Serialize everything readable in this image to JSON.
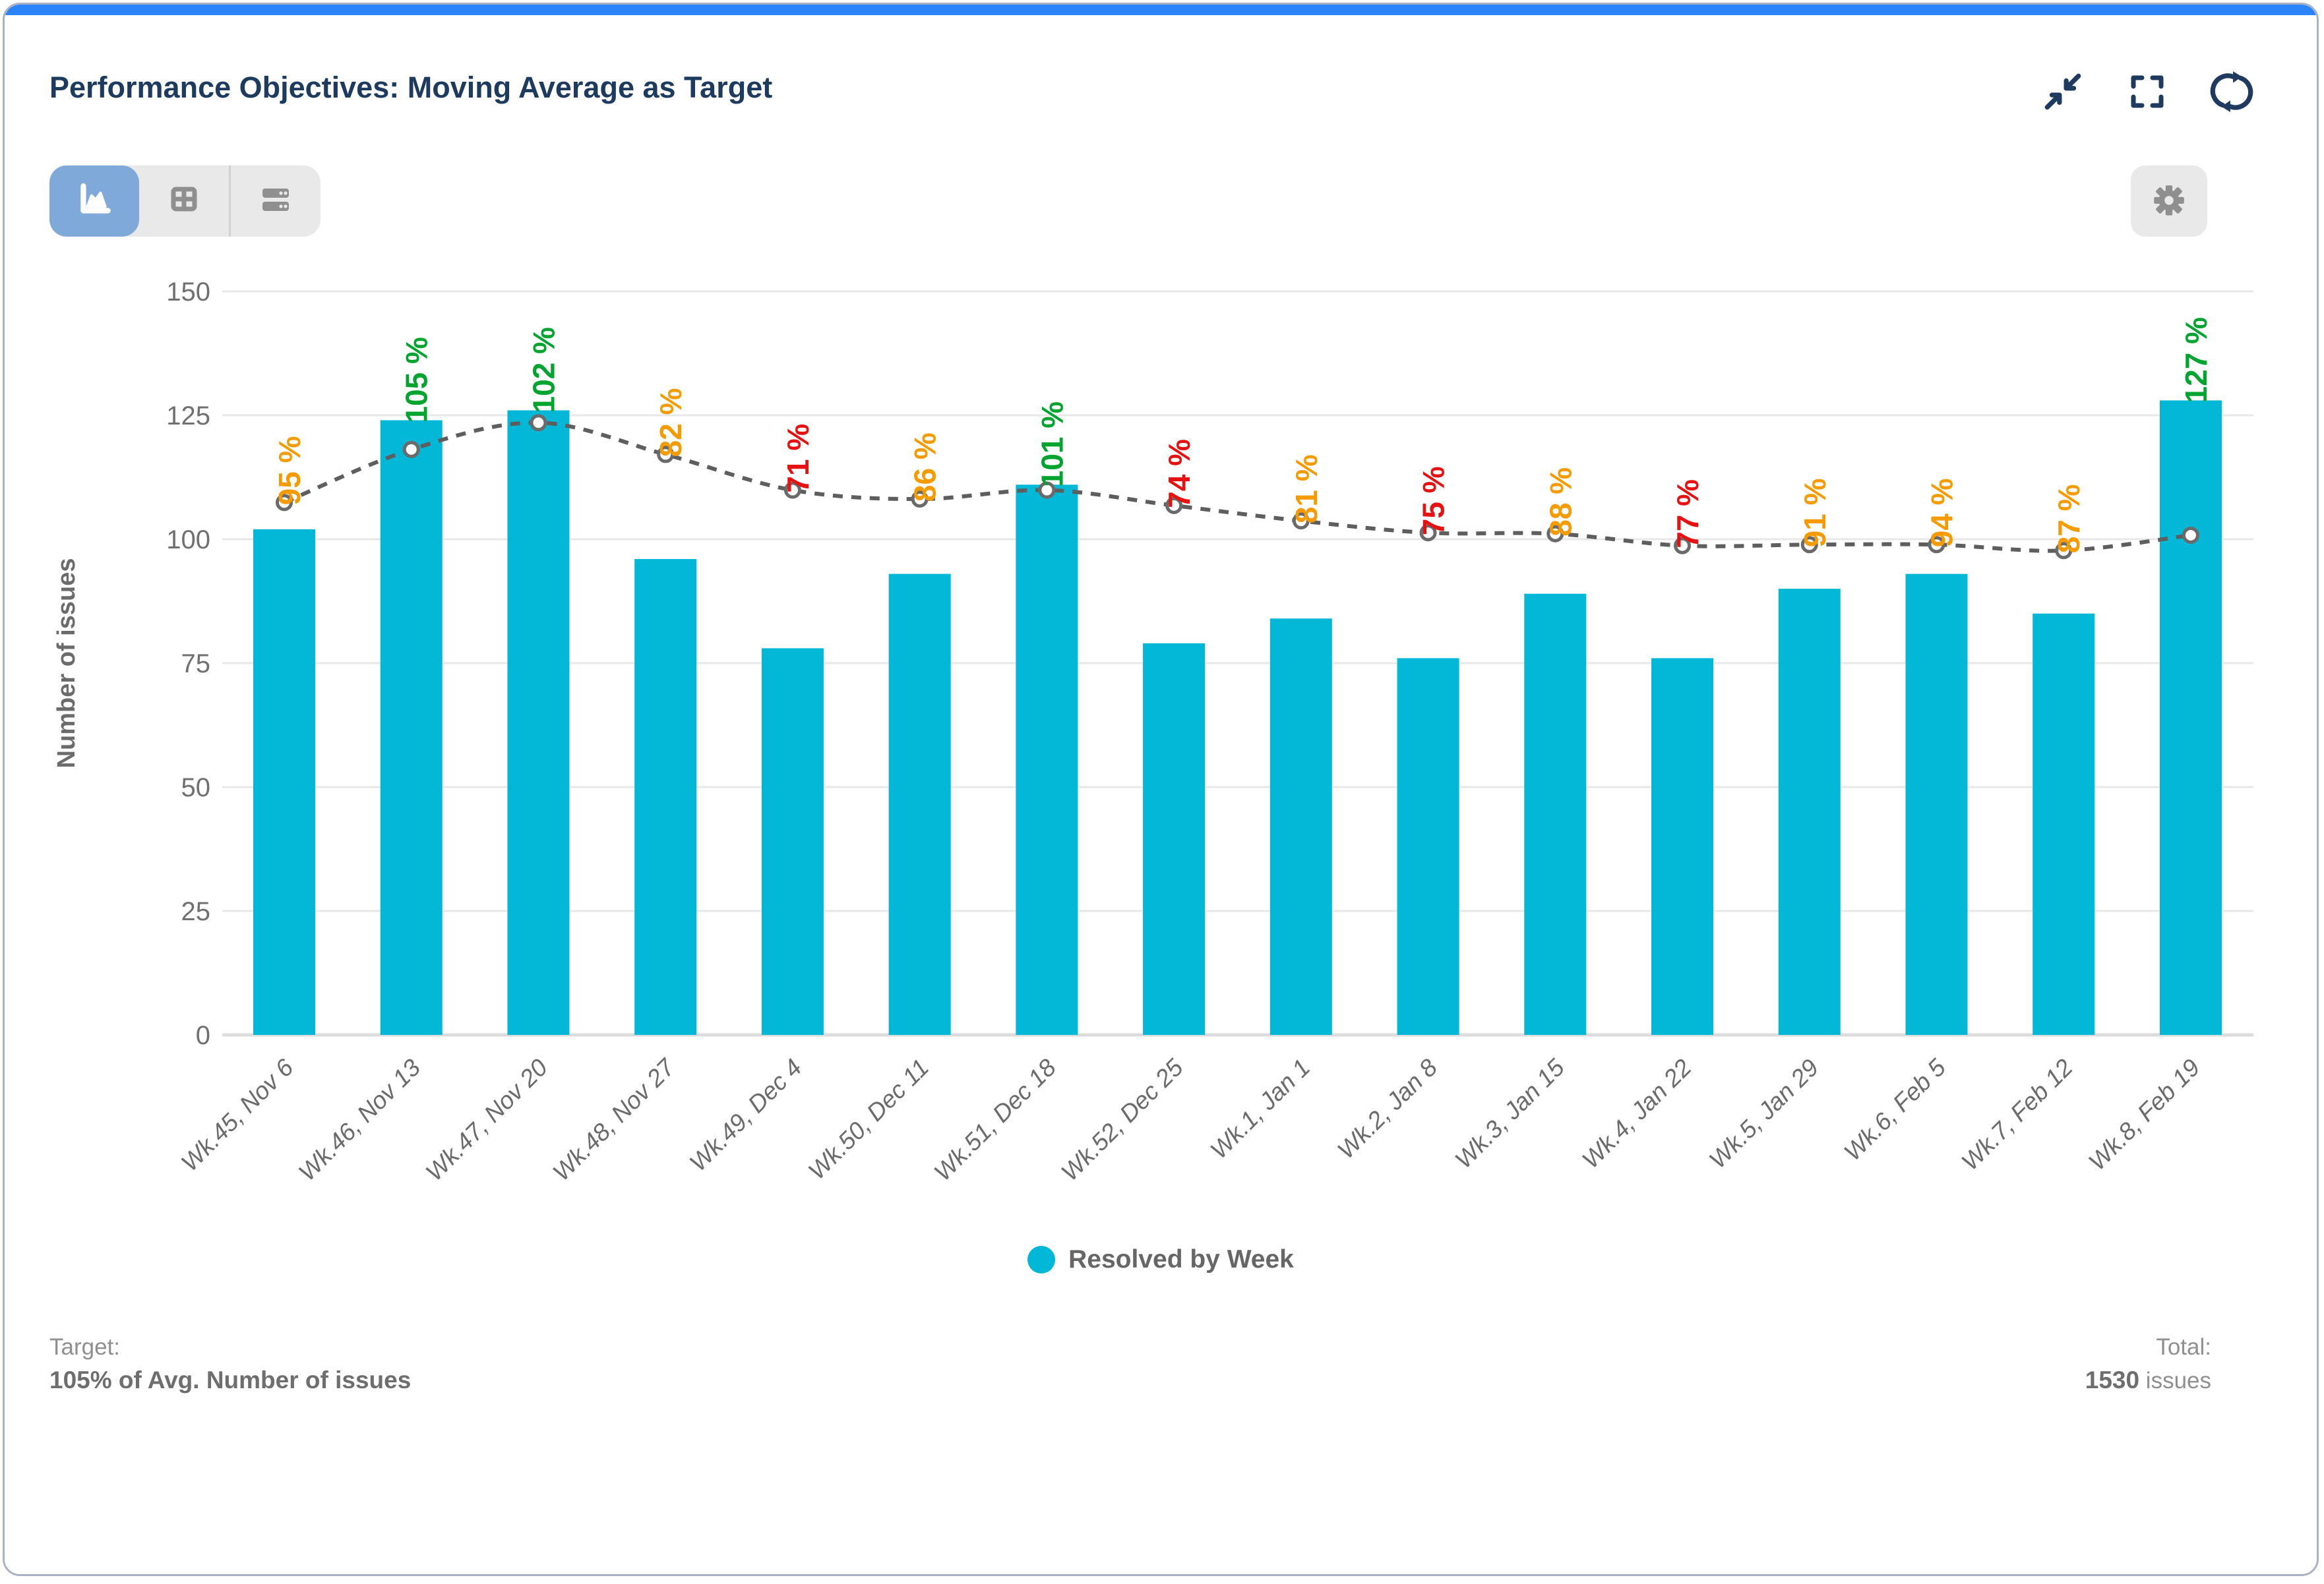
{
  "window": {
    "accent_bar_color": "#2c84fa"
  },
  "header": {
    "title": "Performance Objectives: Moving Average as Target",
    "actions": [
      {
        "id": "collapse",
        "icon": "collapse-icon"
      },
      {
        "id": "fullscreen",
        "icon": "fullscreen-icon"
      },
      {
        "id": "refresh",
        "icon": "refresh-icon"
      }
    ]
  },
  "toolbar": {
    "view_switcher": [
      {
        "id": "chart-view",
        "icon": "area-chart-icon",
        "selected": true
      },
      {
        "id": "table-view",
        "icon": "table-icon",
        "selected": false
      },
      {
        "id": "detail-rows-view",
        "icon": "rows-icon",
        "selected": false
      }
    ],
    "settings_icon": "gear-icon"
  },
  "chart_data": {
    "type": "bar",
    "title": "",
    "xlabel": "",
    "ylabel": "Number of issues",
    "ylim": [
      0,
      150
    ],
    "yticks": [
      0,
      25,
      50,
      75,
      100,
      125,
      150
    ],
    "grid": true,
    "legend_position": "bottom",
    "categories": [
      "Wk.45, Nov 6",
      "Wk.46, Nov 13",
      "Wk.47, Nov 20",
      "Wk.48, Nov 27",
      "Wk.49, Dec 4",
      "Wk.50, Dec 11",
      "Wk.51, Dec 18",
      "Wk.52, Dec 25",
      "Wk.1, Jan 1",
      "Wk.2, Jan 8",
      "Wk.3, Jan 15",
      "Wk.4, Jan 22",
      "Wk.5, Jan 29",
      "Wk.6, Feb 5",
      "Wk.7, Feb 12",
      "Wk.8, Feb 19"
    ],
    "series": [
      {
        "name": "Resolved by Week",
        "type": "column",
        "color": "#03b7d7",
        "values": [
          102,
          124,
          126,
          96,
          78,
          93,
          111,
          79,
          84,
          76,
          89,
          76,
          90,
          93,
          85,
          128
        ]
      },
      {
        "name": "Target (moving average)",
        "type": "dashed-line",
        "color": "#5e5e5e",
        "marker": "circle",
        "values": [
          107.4,
          118.1,
          123.5,
          117.1,
          109.9,
          108.1,
          109.9,
          106.8,
          103.7,
          101.3,
          101.1,
          98.7,
          98.9,
          98.9,
          97.7,
          100.8
        ]
      }
    ],
    "percent_labels": {
      "values": [
        "95 %",
        "105 %",
        "102 %",
        "82 %",
        "71 %",
        "86 %",
        "101 %",
        "74 %",
        "81 %",
        "75 %",
        "88 %",
        "77 %",
        "91 %",
        "94 %",
        "87 %",
        "127 %"
      ],
      "statuses": [
        "warn",
        "good",
        "good",
        "warn",
        "bad",
        "warn",
        "good",
        "bad",
        "warn",
        "bad",
        "warn",
        "bad",
        "warn",
        "warn",
        "warn",
        "good"
      ],
      "status_colors": {
        "good": "#00a42e",
        "warn": "#f59b00",
        "bad": "#e61111"
      }
    },
    "legend": {
      "items": [
        {
          "label": "Resolved by Week",
          "color": "#03b7d7"
        }
      ]
    }
  },
  "footer": {
    "target_label": "Target:",
    "target_value": "105% of Avg. Number of issues",
    "total_label": "Total:",
    "total_value": "1530",
    "total_unit": " issues"
  }
}
